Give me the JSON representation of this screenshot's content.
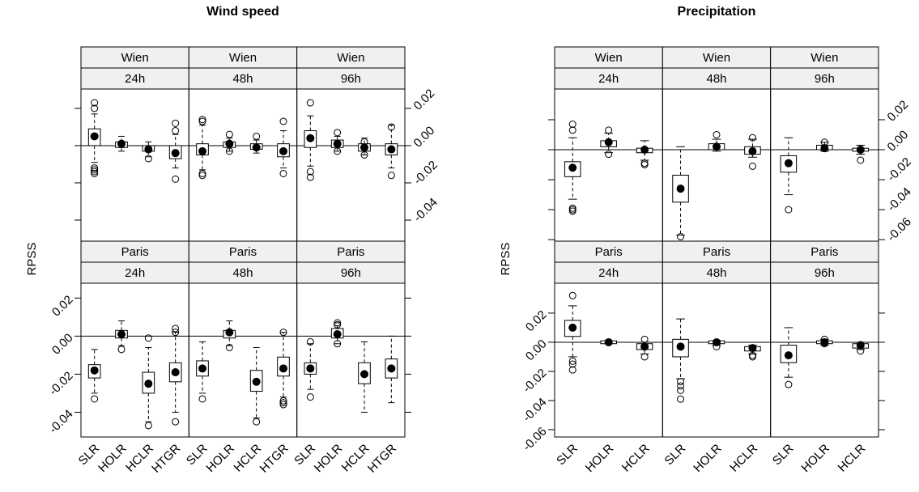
{
  "chart_data": [
    {
      "type": "box",
      "title": "Wind speed",
      "ylabel": "RPSS",
      "categories": [
        "SLR",
        "HOLR",
        "HCLR",
        "HTGR"
      ],
      "rows": [
        {
          "tick_side": "right",
          "ylim": [
            -0.0513,
            0.0304
          ],
          "yticks": [
            0.02,
            {
              "value": 0,
              "label": "0.00"
            },
            -0.02,
            -0.04
          ],
          "panels": [
            {
              "strips": [
                "Wien",
                "24h"
              ],
              "boxes": [
                {
                  "median": 0.005,
                  "q1": 0.0,
                  "q3": 0.009,
                  "low": -0.009,
                  "high": 0.017,
                  "outliers": [
                    0.023,
                    0.02,
                    -0.012,
                    -0.013,
                    -0.014,
                    -0.015
                  ]
                },
                {
                  "median": 0.001,
                  "q1": -0.001,
                  "q3": 0.002,
                  "low": -0.003,
                  "high": 0.005,
                  "outliers": []
                },
                {
                  "median": -0.002,
                  "q1": -0.003,
                  "q3": 0.0,
                  "low": -0.006,
                  "high": 0.002,
                  "outliers": [
                    -0.007
                  ]
                },
                {
                  "median": -0.004,
                  "q1": -0.007,
                  "q3": 0.0,
                  "low": -0.012,
                  "high": 0.006,
                  "outliers": [
                    0.012,
                    0.008,
                    -0.018
                  ]
                }
              ]
            },
            {
              "strips": [
                "Wien",
                "48h"
              ],
              "boxes": [
                {
                  "median": -0.003,
                  "q1": -0.005,
                  "q3": 0.001,
                  "low": -0.013,
                  "high": 0.011,
                  "outliers": [
                    0.014,
                    0.013,
                    -0.015,
                    -0.016
                  ]
                },
                {
                  "median": 0.001,
                  "q1": -0.001,
                  "q3": 0.002,
                  "low": -0.003,
                  "high": 0.004,
                  "outliers": [
                    0.006,
                    -0.003
                  ]
                },
                {
                  "median": -0.001,
                  "q1": -0.002,
                  "q3": 0.001,
                  "low": -0.004,
                  "high": 0.003,
                  "outliers": [
                    0.005
                  ]
                },
                {
                  "median": -0.003,
                  "q1": -0.006,
                  "q3": 0.001,
                  "low": -0.012,
                  "high": 0.008,
                  "outliers": [
                    0.013,
                    -0.015
                  ]
                }
              ]
            },
            {
              "strips": [
                "Wien",
                "96h"
              ],
              "boxes": [
                {
                  "median": 0.004,
                  "q1": -0.001,
                  "q3": 0.008,
                  "low": -0.011,
                  "high": 0.016,
                  "outliers": [
                    0.023,
                    -0.014,
                    -0.017
                  ]
                },
                {
                  "median": 0.001,
                  "q1": -0.001,
                  "q3": 0.003,
                  "low": -0.003,
                  "high": 0.005,
                  "outliers": [
                    0.007,
                    -0.003
                  ]
                },
                {
                  "median": -0.001,
                  "q1": -0.003,
                  "q3": 0.001,
                  "low": -0.005,
                  "high": 0.004,
                  "outliers": [
                    0.002,
                    -0.005
                  ]
                },
                {
                  "median": -0.002,
                  "q1": -0.005,
                  "q3": 0.001,
                  "low": -0.012,
                  "high": 0.011,
                  "outliers": [
                    0.01,
                    -0.016
                  ]
                }
              ]
            }
          ]
        },
        {
          "tick_side": "left",
          "ylim": [
            -0.053,
            0.0278
          ],
          "yticks": [
            0.02,
            {
              "value": 0,
              "label": "0.00"
            },
            -0.02,
            -0.04
          ],
          "panels": [
            {
              "strips": [
                "Paris",
                "24h"
              ],
              "boxes": [
                {
                  "median": -0.018,
                  "q1": -0.022,
                  "q3": -0.015,
                  "low": -0.03,
                  "high": -0.007,
                  "outliers": [
                    -0.033
                  ]
                },
                {
                  "median": 0.001,
                  "q1": -0.001,
                  "q3": 0.003,
                  "low": -0.005,
                  "high": 0.008,
                  "outliers": [
                    -0.007
                  ]
                },
                {
                  "median": -0.025,
                  "q1": -0.03,
                  "q3": -0.019,
                  "low": -0.045,
                  "high": -0.006,
                  "outliers": [
                    -0.001,
                    -0.047
                  ]
                },
                {
                  "median": -0.019,
                  "q1": -0.024,
                  "q3": -0.014,
                  "low": -0.04,
                  "high": 0.002,
                  "outliers": [
                    0.004,
                    0.002,
                    -0.045
                  ]
                }
              ]
            },
            {
              "strips": [
                "Paris",
                "48h"
              ],
              "boxes": [
                {
                  "median": -0.017,
                  "q1": -0.021,
                  "q3": -0.013,
                  "low": -0.03,
                  "high": -0.003,
                  "outliers": [
                    -0.033
                  ]
                },
                {
                  "median": 0.002,
                  "q1": -0.001,
                  "q3": 0.003,
                  "low": -0.005,
                  "high": 0.008,
                  "outliers": [
                    -0.006
                  ]
                },
                {
                  "median": -0.024,
                  "q1": -0.029,
                  "q3": -0.018,
                  "low": -0.043,
                  "high": -0.006,
                  "outliers": [
                    -0.045
                  ]
                },
                {
                  "median": -0.017,
                  "q1": -0.021,
                  "q3": -0.011,
                  "low": -0.032,
                  "high": 0.002,
                  "outliers": [
                    0.002,
                    -0.034,
                    -0.035,
                    -0.036
                  ]
                }
              ]
            },
            {
              "strips": [
                "Paris",
                "96h"
              ],
              "boxes": [
                {
                  "median": -0.017,
                  "q1": -0.02,
                  "q3": -0.014,
                  "low": -0.028,
                  "high": -0.004,
                  "outliers": [
                    -0.003,
                    -0.032
                  ]
                },
                {
                  "median": 0.001,
                  "q1": -0.001,
                  "q3": 0.004,
                  "low": -0.004,
                  "high": 0.007,
                  "outliers": [
                    0.006,
                    0.007,
                    -0.004
                  ]
                },
                {
                  "median": -0.02,
                  "q1": -0.025,
                  "q3": -0.014,
                  "low": -0.04,
                  "high": -0.003,
                  "outliers": []
                },
                {
                  "median": -0.017,
                  "q1": -0.022,
                  "q3": -0.012,
                  "low": -0.035,
                  "high": 0.0,
                  "outliers": []
                }
              ]
            }
          ]
        }
      ]
    },
    {
      "type": "box",
      "title": "Precipitation",
      "ylabel": "RPSS",
      "categories": [
        "SLR",
        "HOLR",
        "HCLR"
      ],
      "rows": [
        {
          "tick_side": "right",
          "ylim": [
            -0.061,
            0.0405
          ],
          "yticks": [
            0.02,
            {
              "value": 0,
              "label": "0.00"
            },
            -0.02,
            -0.04,
            -0.06
          ],
          "panels": [
            {
              "strips": [
                "Wien",
                "24h"
              ],
              "boxes": [
                {
                  "median": -0.012,
                  "q1": -0.018,
                  "q3": -0.008,
                  "low": -0.033,
                  "high": 0.008,
                  "outliers": [
                    0.017,
                    0.013,
                    -0.04,
                    -0.041,
                    -0.039
                  ]
                },
                {
                  "median": 0.005,
                  "q1": 0.002,
                  "q3": 0.006,
                  "low": -0.002,
                  "high": 0.011,
                  "outliers": [
                    0.013,
                    -0.003
                  ]
                },
                {
                  "median": 0.0,
                  "q1": -0.002,
                  "q3": 0.001,
                  "low": -0.007,
                  "high": 0.006,
                  "outliers": [
                    -0.009,
                    -0.01
                  ]
                }
              ]
            },
            {
              "strips": [
                "Wien",
                "48h"
              ],
              "boxes": [
                {
                  "median": -0.026,
                  "q1": -0.035,
                  "q3": -0.017,
                  "low": -0.057,
                  "high": 0.002,
                  "outliers": [
                    -0.058
                  ]
                },
                {
                  "median": 0.002,
                  "q1": 0.0,
                  "q3": 0.004,
                  "low": -0.001,
                  "high": 0.007,
                  "outliers": [
                    0.01
                  ]
                },
                {
                  "median": -0.001,
                  "q1": -0.003,
                  "q3": 0.002,
                  "low": -0.005,
                  "high": 0.007,
                  "outliers": [
                    0.008,
                    -0.011
                  ]
                }
              ]
            },
            {
              "strips": [
                "Wien",
                "96h"
              ],
              "boxes": [
                {
                  "median": -0.009,
                  "q1": -0.015,
                  "q3": -0.004,
                  "low": -0.03,
                  "high": 0.008,
                  "outliers": [
                    -0.04
                  ]
                },
                {
                  "median": 0.001,
                  "q1": 0.0,
                  "q3": 0.003,
                  "low": -0.001,
                  "high": 0.005,
                  "outliers": [
                    0.005
                  ]
                },
                {
                  "median": 0.0,
                  "q1": -0.001,
                  "q3": 0.001,
                  "low": -0.003,
                  "high": 0.003,
                  "outliers": [
                    -0.007
                  ]
                }
              ]
            }
          ]
        },
        {
          "tick_side": "left",
          "ylim": [
            -0.065,
            0.0405
          ],
          "yticks": [
            0.02,
            {
              "value": 0,
              "label": "0.00"
            },
            -0.02,
            -0.04,
            -0.06
          ],
          "panels": [
            {
              "strips": [
                "Paris",
                "24h"
              ],
              "boxes": [
                {
                  "median": 0.01,
                  "q1": 0.004,
                  "q3": 0.015,
                  "low": -0.01,
                  "high": 0.025,
                  "outliers": [
                    0.032,
                    -0.013,
                    -0.015,
                    -0.019
                  ]
                },
                {
                  "median": 0.0,
                  "q1": -0.001,
                  "q3": 0.001,
                  "low": -0.001,
                  "high": 0.001,
                  "outliers": []
                },
                {
                  "median": -0.003,
                  "q1": -0.005,
                  "q3": -0.001,
                  "low": -0.008,
                  "high": 0.0,
                  "outliers": [
                    0.002,
                    -0.01
                  ]
                }
              ]
            },
            {
              "strips": [
                "Paris",
                "48h"
              ],
              "boxes": [
                {
                  "median": -0.003,
                  "q1": -0.01,
                  "q3": 0.002,
                  "low": -0.025,
                  "high": 0.016,
                  "outliers": [
                    -0.027,
                    -0.03,
                    -0.033,
                    -0.039
                  ]
                },
                {
                  "median": 0.0,
                  "q1": -0.001,
                  "q3": 0.001,
                  "low": -0.002,
                  "high": 0.001,
                  "outliers": [
                    -0.003
                  ]
                },
                {
                  "median": -0.004,
                  "q1": -0.006,
                  "q3": -0.003,
                  "low": -0.008,
                  "high": -0.002,
                  "outliers": [
                    -0.01,
                    -0.009
                  ]
                }
              ]
            },
            {
              "strips": [
                "Paris",
                "96h"
              ],
              "boxes": [
                {
                  "median": -0.009,
                  "q1": -0.014,
                  "q3": -0.002,
                  "low": -0.024,
                  "high": 0.01,
                  "outliers": [
                    -0.029
                  ]
                },
                {
                  "median": 0.0,
                  "q1": -0.001,
                  "q3": 0.001,
                  "low": -0.002,
                  "high": 0.002,
                  "outliers": [
                    0.002,
                    -0.001
                  ]
                },
                {
                  "median": -0.002,
                  "q1": -0.004,
                  "q3": -0.001,
                  "low": -0.005,
                  "high": 0.0,
                  "outliers": [
                    -0.006
                  ]
                }
              ]
            }
          ]
        }
      ]
    }
  ]
}
